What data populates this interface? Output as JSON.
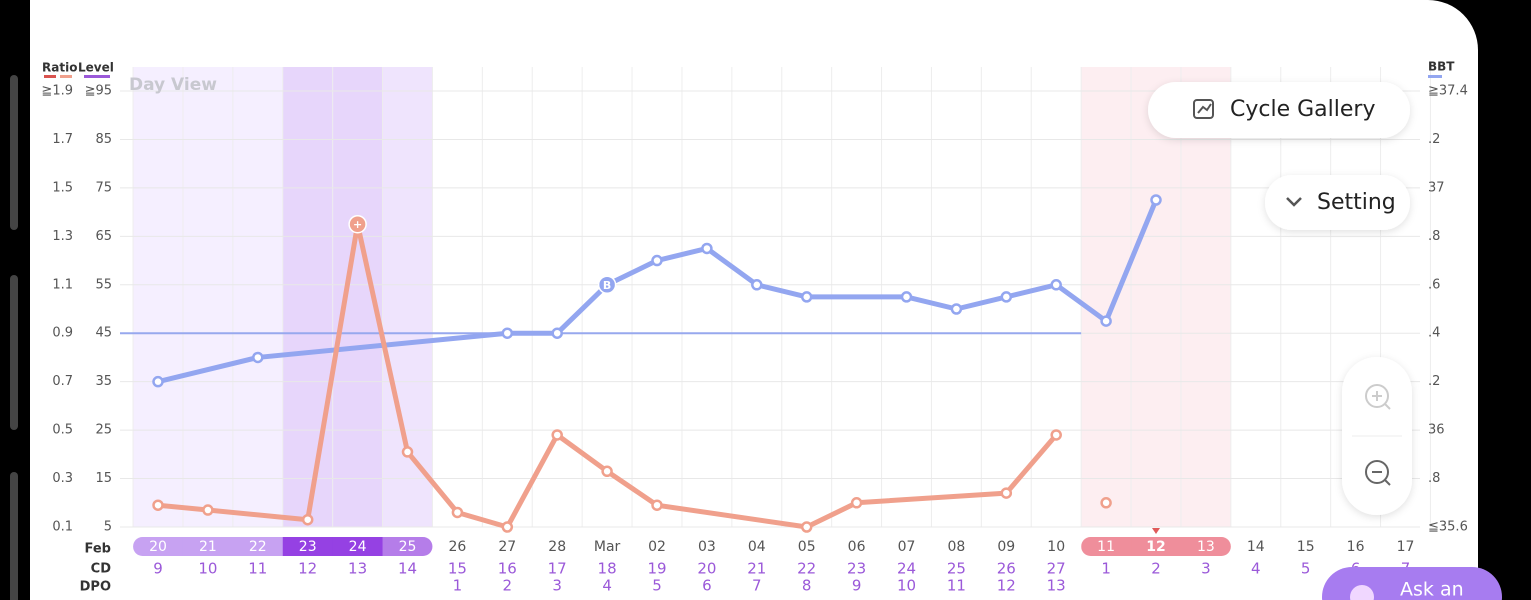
{
  "view_label": "Day View",
  "buttons": {
    "cycle_gallery": "Cycle Gallery",
    "setting": "Setting",
    "ask": "Ask an"
  },
  "chart_data": {
    "type": "line",
    "left_axis_titles": [
      "Ratio",
      "Level"
    ],
    "right_axis_title": "BBT",
    "ratio_lim": [
      0.1,
      1.9
    ],
    "ratio_ticks": [
      {
        "value": 1.9,
        "label": "≧1.9"
      },
      1.7,
      1.5,
      1.3,
      1.1,
      0.9,
      0.7,
      0.5,
      0.3,
      0.1
    ],
    "level_lim": [
      5,
      95
    ],
    "level_ticks": [
      {
        "value": 95,
        "label": "≧95"
      },
      85,
      75,
      65,
      55,
      45,
      35,
      25,
      15,
      5
    ],
    "y2lim": [
      35.6,
      37.4
    ],
    "y2ticks": [
      {
        "value": 37.4,
        "label": "≧37.4"
      },
      {
        "value": 37.2,
        "label": ".2"
      },
      37,
      {
        "value": 36.8,
        "label": ".8"
      },
      {
        "value": 36.6,
        "label": ".6"
      },
      {
        "value": 36.4,
        "label": ".4"
      },
      {
        "value": 36.2,
        "label": ".2"
      },
      36,
      {
        "value": 35.8,
        "label": ".8"
      },
      {
        "value": 35.6,
        "label": "≦35.6"
      }
    ],
    "month_label": "Feb",
    "row_labels": {
      "cd": "CD",
      "dpo": "DPO"
    },
    "categories": [
      "20",
      "21",
      "22",
      "23",
      "24",
      "25",
      "26",
      "27",
      "28",
      "Mar",
      "02",
      "03",
      "04",
      "05",
      "06",
      "07",
      "08",
      "09",
      "10",
      "11",
      "12",
      "13",
      "14",
      "15",
      "16",
      "17"
    ],
    "cd": [
      9,
      10,
      11,
      12,
      13,
      14,
      15,
      16,
      17,
      18,
      19,
      20,
      21,
      22,
      23,
      24,
      25,
      26,
      27,
      1,
      2,
      3,
      4,
      5,
      6,
      7
    ],
    "dpo": [
      null,
      null,
      null,
      null,
      null,
      null,
      1,
      2,
      3,
      4,
      5,
      6,
      7,
      8,
      9,
      10,
      11,
      12,
      13,
      null,
      null,
      null,
      null,
      null,
      null,
      null
    ],
    "day_phases": [
      "fertile",
      "fertile",
      "fertile",
      "peak",
      "peak",
      "ovulation",
      null,
      null,
      null,
      null,
      null,
      null,
      null,
      null,
      null,
      null,
      null,
      null,
      null,
      "period",
      "period",
      "period",
      null,
      null,
      null,
      null
    ],
    "phase_colors": {
      "fertile": {
        "pill": "#c7a2f2",
        "column": "#f5efff"
      },
      "peak": {
        "pill": "#9541e3",
        "column": "#e7d6fb"
      },
      "ovulation": {
        "pill": "#b57de9",
        "column": "#efe4fd"
      },
      "period": {
        "pill": "#ef8e9b",
        "column": "#fdeef1"
      }
    },
    "today_index": 20,
    "today_color": "#e05a5a",
    "coverline": {
      "value": 36.4,
      "color": "#97a8ee"
    },
    "series": [
      {
        "color": "#93a6f0",
        "axis": "y2",
        "break_at_cycle_start": false,
        "values": [
          36.2,
          null,
          36.3,
          null,
          null,
          null,
          null,
          36.4,
          36.4,
          36.6,
          36.7,
          36.75,
          36.6,
          36.55,
          null,
          36.55,
          36.5,
          36.55,
          36.6,
          36.45,
          36.95,
          null,
          null,
          null,
          null,
          null
        ]
      },
      {
        "color": "#f0a08c",
        "axis": "y",
        "break_at_cycle_start": true,
        "values": [
          0.19,
          0.17,
          null,
          0.13,
          1.35,
          0.41,
          0.16,
          0.1,
          0.48,
          0.33,
          0.19,
          null,
          null,
          0.1,
          0.2,
          null,
          null,
          0.24,
          0.48,
          0.2,
          null,
          null,
          null,
          null,
          null,
          null
        ]
      }
    ],
    "annotations": [
      {
        "series": 1,
        "index": 4,
        "text": "+"
      },
      {
        "series": 0,
        "index": 9,
        "text": "B"
      }
    ]
  }
}
